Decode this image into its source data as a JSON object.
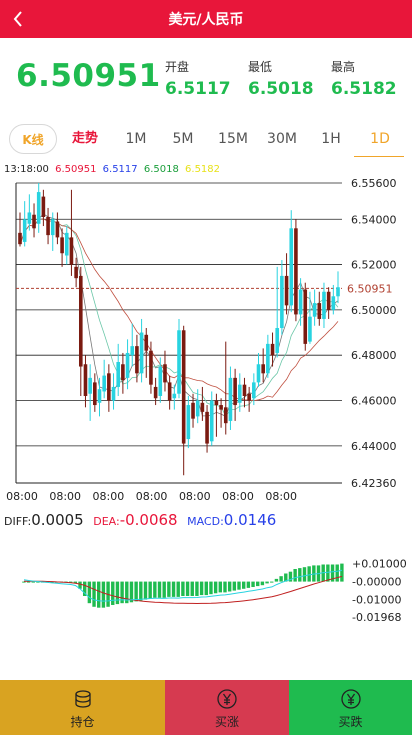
{
  "header": {
    "title": "美元/人民币"
  },
  "quote": {
    "last": "6.50951",
    "open_label": "开盘",
    "open": "6.5117",
    "low_label": "最低",
    "low": "6.5018",
    "high_label": "最高",
    "high": "6.5182"
  },
  "tabs": [
    {
      "label": "K线"
    },
    {
      "label": "走势"
    },
    {
      "label": "1M"
    },
    {
      "label": "5M"
    },
    {
      "label": "15M"
    },
    {
      "label": "30M"
    },
    {
      "label": "1H"
    },
    {
      "label": "1D"
    }
  ],
  "ohlc_line": {
    "time": "13:18:00",
    "close": "6.50951",
    "open": "6.5117",
    "low": "6.5018",
    "high": "6.5182"
  },
  "macd": {
    "diff_label": "DIFF:",
    "diff": "0.0005",
    "dea_label": "DEA:",
    "dea": "-0.0068",
    "macd_label": "MACD:",
    "macd": "0.0146"
  },
  "colors": {
    "up": "#28d3e0",
    "down": "#7a1a10",
    "green": "#1fbb4f",
    "red": "#e8163a",
    "gold": "#d9a321"
  },
  "footer": {
    "hold": "持仓",
    "buy_up": "买涨",
    "buy_down": "买跌"
  },
  "chart_data": [
    {
      "type": "candlestick",
      "ylim": [
        6.4236,
        6.556
      ],
      "y_ticks": [
        "6.55600",
        "6.54000",
        "6.52000",
        "6.50000",
        "6.48000",
        "6.46000",
        "6.44000",
        "6.42360"
      ],
      "x_ticks": [
        "08:00",
        "08:00",
        "08:00",
        "08:00",
        "08:00",
        "08:00",
        "08:00"
      ],
      "current_price_label": "6.50951",
      "current_price": 6.50951,
      "candles": [
        [
          6.534,
          6.529,
          6.543,
          6.528
        ],
        [
          6.53,
          6.54,
          6.548,
          6.528
        ],
        [
          6.538,
          6.543,
          6.551,
          6.535
        ],
        [
          6.542,
          6.536,
          6.547,
          6.532
        ],
        [
          6.538,
          6.552,
          6.556,
          6.534
        ],
        [
          6.55,
          6.541,
          6.553,
          6.537
        ],
        [
          6.541,
          6.533,
          6.545,
          6.529
        ],
        [
          6.533,
          6.54,
          6.543,
          6.526
        ],
        [
          6.539,
          6.532,
          6.543,
          6.529
        ],
        [
          6.532,
          6.525,
          6.536,
          6.519
        ],
        [
          6.524,
          6.534,
          6.537,
          6.52
        ],
        [
          6.532,
          6.52,
          6.553,
          6.515
        ],
        [
          6.519,
          6.514,
          6.523,
          6.51
        ],
        [
          6.515,
          6.475,
          6.519,
          6.462
        ],
        [
          6.476,
          6.462,
          6.48,
          6.457
        ],
        [
          6.463,
          6.47,
          6.476,
          6.451
        ],
        [
          6.468,
          6.458,
          6.472,
          6.455
        ],
        [
          6.459,
          6.465,
          6.47,
          6.453
        ],
        [
          6.464,
          6.471,
          6.478,
          6.461
        ],
        [
          6.472,
          6.46,
          6.476,
          6.455
        ],
        [
          6.46,
          6.466,
          6.472,
          6.456
        ],
        [
          6.466,
          6.477,
          6.485,
          6.462
        ],
        [
          6.476,
          6.469,
          6.481,
          6.463
        ],
        [
          6.47,
          6.481,
          6.487,
          6.465
        ],
        [
          6.48,
          6.484,
          6.494,
          6.475
        ],
        [
          6.484,
          6.472,
          6.489,
          6.468
        ],
        [
          6.472,
          6.49,
          6.496,
          6.468
        ],
        [
          6.489,
          6.482,
          6.492,
          6.47
        ],
        [
          6.482,
          6.467,
          6.486,
          6.463
        ],
        [
          6.466,
          6.461,
          6.47,
          6.458
        ],
        [
          6.462,
          6.475,
          6.479,
          6.459
        ],
        [
          6.476,
          6.468,
          6.482,
          6.464
        ],
        [
          6.468,
          6.46,
          6.471,
          6.456
        ],
        [
          6.461,
          6.463,
          6.467,
          6.456
        ],
        [
          6.463,
          6.491,
          6.496,
          6.461
        ],
        [
          6.491,
          6.441,
          6.493,
          6.427
        ],
        [
          6.443,
          6.458,
          6.462,
          6.439
        ],
        [
          6.459,
          6.452,
          6.463,
          6.448
        ],
        [
          6.453,
          6.46,
          6.465,
          6.45
        ],
        [
          6.459,
          6.455,
          6.466,
          6.451
        ],
        [
          6.455,
          6.441,
          6.458,
          6.437
        ],
        [
          6.442,
          6.46,
          6.464,
          6.44
        ],
        [
          6.46,
          6.458,
          6.463,
          6.444
        ],
        [
          6.458,
          6.456,
          6.461,
          6.448
        ],
        [
          6.457,
          6.45,
          6.486,
          6.445
        ],
        [
          6.451,
          6.47,
          6.475,
          6.447
        ],
        [
          6.47,
          6.458,
          6.474,
          6.451
        ],
        [
          6.459,
          6.467,
          6.472,
          6.455
        ],
        [
          6.467,
          6.462,
          6.47,
          6.457
        ],
        [
          6.463,
          6.46,
          6.466,
          6.455
        ],
        [
          6.461,
          6.468,
          6.472,
          6.458
        ],
        [
          6.468,
          6.476,
          6.481,
          6.466
        ],
        [
          6.476,
          6.472,
          6.483,
          6.468
        ],
        [
          6.472,
          6.485,
          6.489,
          6.47
        ],
        [
          6.485,
          6.48,
          6.49,
          6.475
        ],
        [
          6.481,
          6.492,
          6.519,
          6.479
        ],
        [
          6.492,
          6.515,
          6.522,
          6.489
        ],
        [
          6.515,
          6.502,
          6.525,
          6.498
        ],
        [
          6.502,
          6.536,
          6.544,
          6.499
        ],
        [
          6.536,
          6.498,
          6.54,
          6.495
        ],
        [
          6.498,
          6.509,
          6.514,
          6.493
        ],
        [
          6.509,
          6.485,
          6.512,
          6.482
        ],
        [
          6.486,
          6.497,
          6.508,
          6.485
        ],
        [
          6.497,
          6.503,
          6.509,
          6.493
        ],
        [
          6.503,
          6.496,
          6.508,
          6.493
        ],
        [
          6.496,
          6.508,
          6.512,
          6.492
        ],
        [
          6.508,
          6.5,
          6.51,
          6.496
        ],
        [
          6.5,
          6.506,
          6.511,
          6.498
        ],
        [
          6.506,
          6.51,
          6.517,
          6.503
        ]
      ]
    },
    {
      "type": "bar",
      "ylim": [
        -0.01968,
        0.012
      ],
      "y_ticks": [
        "+0.01000",
        "-0.00000",
        "-0.01000",
        "-0.01968"
      ],
      "values": [
        0.0,
        -0.0003,
        -0.0004,
        -0.0004,
        -0.0004,
        -0.0004,
        -0.0004,
        -0.0004,
        -0.0004,
        -0.0004,
        -0.0004,
        -0.001,
        -0.004,
        -0.008,
        -0.012,
        -0.014,
        -0.0145,
        -0.0145,
        -0.014,
        -0.013,
        -0.0125,
        -0.012,
        -0.012,
        -0.0115,
        -0.011,
        -0.0105,
        -0.01,
        -0.0095,
        -0.009,
        -0.009,
        -0.009,
        -0.0085,
        -0.0085,
        -0.0085,
        -0.008,
        -0.008,
        -0.008,
        -0.008,
        -0.0075,
        -0.0075,
        -0.007,
        -0.0065,
        -0.006,
        -0.006,
        -0.0055,
        -0.005,
        -0.0045,
        -0.004,
        -0.0035,
        -0.003,
        -0.0025,
        -0.002,
        -0.001,
        -0.0005,
        0.0015,
        0.003,
        0.0045,
        0.0055,
        0.007,
        0.0075,
        0.008,
        0.0085,
        0.009,
        0.009,
        0.0095,
        0.0095,
        0.0095,
        0.0095,
        0.01
      ]
    }
  ]
}
